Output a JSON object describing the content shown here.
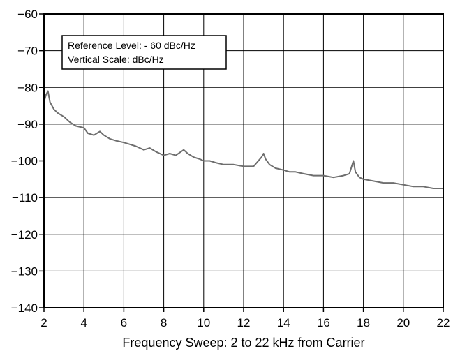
{
  "chart_data": {
    "type": "line",
    "title": "",
    "xlabel": "Frequency Sweep: 2 to 22 kHz from Carrier",
    "ylabel": "",
    "xlim": [
      2,
      22
    ],
    "ylim": [
      -140,
      -60
    ],
    "grid": true,
    "x_ticks": [
      2,
      4,
      6,
      8,
      10,
      12,
      14,
      16,
      18,
      20,
      22
    ],
    "y_ticks": [
      -60,
      -70,
      -80,
      -90,
      -100,
      -110,
      -120,
      -130,
      -140
    ],
    "x_tick_labels": [
      "2",
      "4",
      "6",
      "8",
      "10",
      "12",
      "14",
      "16",
      "18",
      "20",
      "22"
    ],
    "y_tick_labels": [
      "−60",
      "−70",
      "−80",
      "−90",
      "−100",
      "−110",
      "−120",
      "−130",
      "−140"
    ],
    "annotation": {
      "lines": [
        "Reference Level: - 60 dBc/Hz",
        "Vertical Scale: dBc/Hz"
      ],
      "placement": "top-left"
    },
    "series": [
      {
        "color": "#6e6e6e",
        "x": [
          2.0,
          2.1,
          2.2,
          2.3,
          2.5,
          2.7,
          3.0,
          3.3,
          3.6,
          4.0,
          4.2,
          4.5,
          4.8,
          5.0,
          5.3,
          5.6,
          6.0,
          6.3,
          6.6,
          7.0,
          7.3,
          7.6,
          8.0,
          8.3,
          8.6,
          9.0,
          9.2,
          9.5,
          9.8,
          10.0,
          10.3,
          10.6,
          11.0,
          11.5,
          12.0,
          12.5,
          12.9,
          13.0,
          13.1,
          13.3,
          13.6,
          14.0,
          14.3,
          14.6,
          15.0,
          15.5,
          16.0,
          16.5,
          17.0,
          17.3,
          17.5,
          17.6,
          17.8,
          18.0,
          18.5,
          19.0,
          19.5,
          20.0,
          20.5,
          21.0,
          21.5,
          22.0
        ],
        "y": [
          -84,
          -82,
          -81,
          -84,
          -86,
          -87,
          -88,
          -89.5,
          -90.5,
          -91,
          -92.5,
          -93,
          -92,
          -93,
          -94,
          -94.5,
          -95,
          -95.5,
          -96,
          -97,
          -96.5,
          -97.5,
          -98.5,
          -98,
          -98.5,
          -97,
          -98,
          -99,
          -99.5,
          -100,
          -100,
          -100.5,
          -101,
          -101,
          -101.5,
          -101.5,
          -99,
          -98,
          -99.5,
          -101,
          -102,
          -102.5,
          -103,
          -103,
          -103.5,
          -104,
          -104,
          -104.5,
          -104,
          -103.5,
          -100,
          -103,
          -104.5,
          -105,
          -105.5,
          -106,
          -106,
          -106.5,
          -107,
          -107,
          -107.5,
          -107.5
        ]
      }
    ]
  }
}
